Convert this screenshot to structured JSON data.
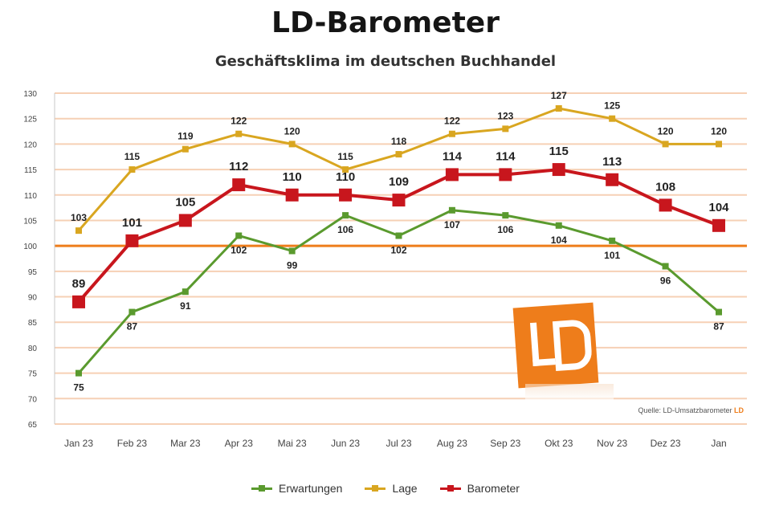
{
  "chart_data": {
    "type": "line",
    "title": "LD-Barometer",
    "subtitle": "Geschäftsklima im deutschen Buchhandel",
    "categories": [
      "Jan 23",
      "Feb 23",
      "Mar 23",
      "Apr 23",
      "Mai 23",
      "Jun 23",
      "Jul 23",
      "Aug 23",
      "Sep 23",
      "Okt 23",
      "Nov 23",
      "Dez 23",
      "Jan"
    ],
    "series": [
      {
        "name": "Erwartungen",
        "color": "#5a9a2e",
        "marker": "square-small",
        "values": [
          75,
          87,
          91,
          102,
          99,
          106,
          102,
          107,
          106,
          104,
          101,
          96,
          87
        ],
        "labels": [
          "75",
          "87",
          "91",
          "102",
          "99",
          "106",
          "102",
          "107",
          "106",
          "104",
          "101",
          "96",
          "87"
        ],
        "label_pos": "below"
      },
      {
        "name": "Lage",
        "color": "#d9a620",
        "marker": "square-small",
        "values": [
          103,
          115,
          119,
          122,
          120,
          115,
          118,
          122,
          123,
          127,
          125,
          120,
          120
        ],
        "labels": [
          "103",
          "115",
          "119",
          "122",
          "120",
          "115",
          "118",
          "122",
          "123",
          "127",
          "125",
          "120",
          "120"
        ],
        "label_pos": "above"
      },
      {
        "name": "Barometer",
        "color": "#c8161d",
        "marker": "square-large",
        "values": [
          89,
          101,
          105,
          112,
          110,
          110,
          109,
          114,
          114,
          115,
          113,
          108,
          104
        ],
        "labels": [
          "89",
          "101",
          "105",
          "112",
          "110",
          "110",
          "109",
          "114",
          "114",
          "115",
          "113",
          "108",
          "104"
        ],
        "label_pos": "above"
      }
    ],
    "ylim": [
      65,
      130
    ],
    "yticks": [
      "130",
      "125",
      "120",
      "115",
      "110",
      "105",
      "100",
      "95",
      "90",
      "85",
      "80",
      "75",
      "70",
      "65"
    ],
    "reference_line": 100,
    "grid": true,
    "legend_position": "bottom"
  },
  "source_text": "Quelle: LD-Umsatzbarometer",
  "source_accent": "LD",
  "logo_text": "LD",
  "colors": {
    "grid": "#f6d0b5",
    "reference": "#ee7d1b",
    "axis_text": "#444444",
    "label_text": "#222222"
  }
}
